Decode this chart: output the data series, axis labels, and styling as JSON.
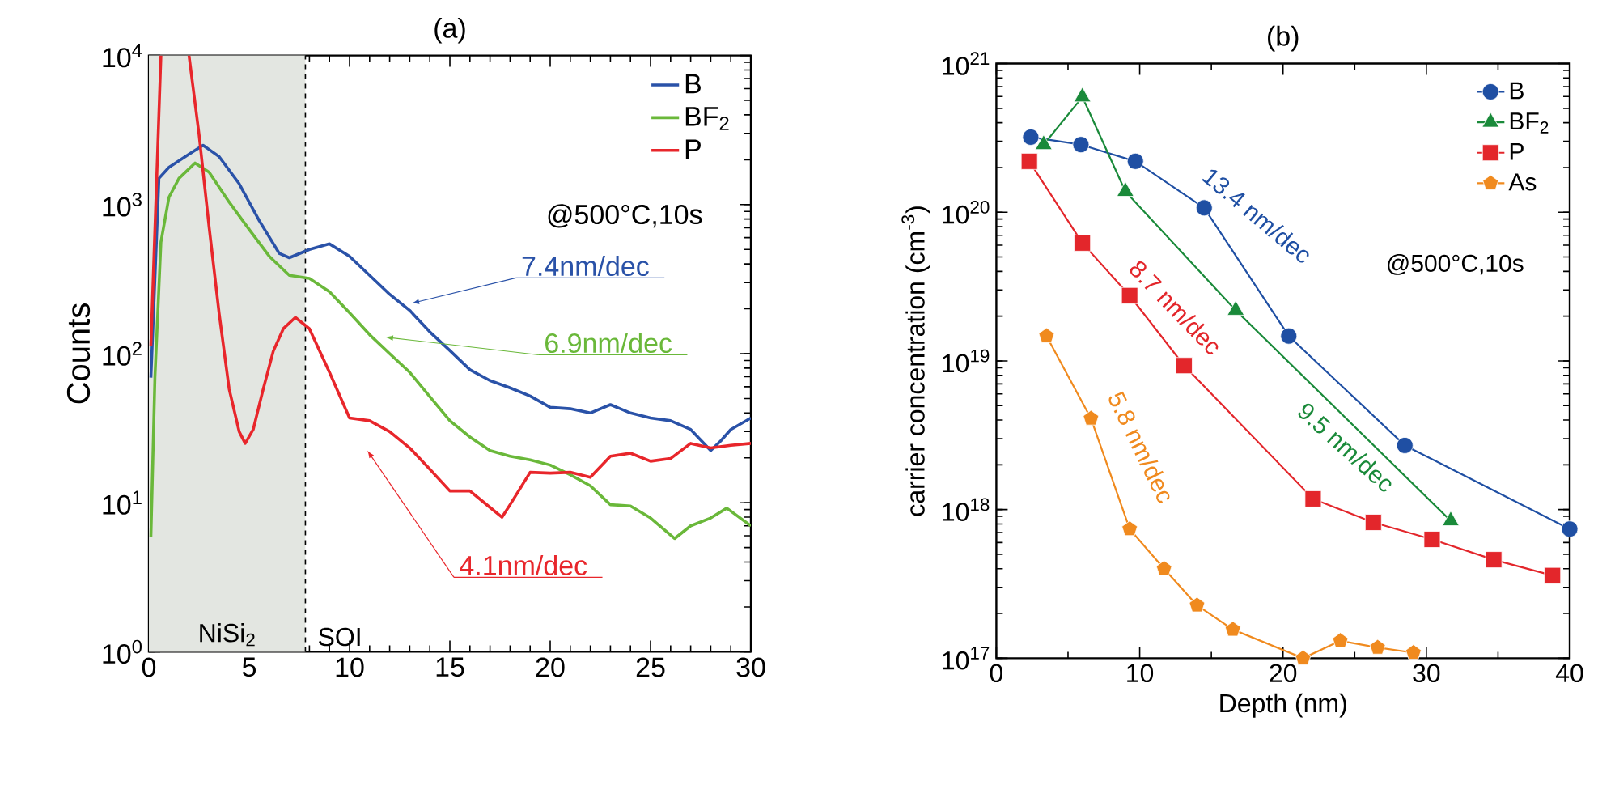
{
  "chart_data": [
    {
      "type": "line",
      "title": "(a)",
      "ylabel": "Counts",
      "log": true,
      "legend": "top right",
      "xlim": [
        0,
        30
      ],
      "xticks": [
        0,
        5,
        10,
        15,
        20,
        25,
        30
      ],
      "ylim": [
        1,
        10000
      ],
      "yticks": [
        {
          "value": 1,
          "label": "10$^{0}$"
        },
        {
          "value": 10,
          "label": "10$^{1}$"
        },
        {
          "value": 100,
          "label": "10$^{2}$"
        },
        {
          "value": 1000,
          "label": "10$^{3}$"
        },
        {
          "value": 10000,
          "label": "10$^{4}$"
        }
      ],
      "bands": [
        {
          "axis": "x",
          "from": 0,
          "to": 7.8,
          "label": "NiSi$_{2}$",
          "color": "#e3e6e1"
        }
      ],
      "ref_lines": [
        {
          "axis": "x",
          "value": 7.8,
          "label": "SOI",
          "line_style": "dashed",
          "color": "#000000"
        }
      ],
      "annotations": [
        {
          "text": "7.4nm/dec",
          "x": 13.1,
          "y": 218
        },
        {
          "text": "6.9nm/dec",
          "x": 11.8,
          "y": 129
        },
        "4.1nm/dec",
        "@500°C,10s"
      ],
      "series": [
        {
          "name": "B",
          "color": "#2a52a8",
          "x": [
            0.1,
            0.5,
            1,
            2,
            2.7,
            3.5,
            4.5,
            5.5,
            6.5,
            7,
            8,
            9,
            10,
            11,
            12,
            13,
            14,
            15,
            16,
            17,
            18,
            19,
            20,
            21,
            22,
            23,
            24,
            25,
            26,
            27,
            28,
            28.5,
            29,
            30
          ],
          "values": [
            69,
            1500,
            1780,
            2180,
            2500,
            2100,
            1380,
            780,
            470,
            440,
            500,
            545,
            450,
            335,
            250,
            195,
            140,
            105,
            78,
            66,
            59,
            52,
            43.6,
            42.7,
            40,
            45.5,
            40,
            37,
            35.5,
            31,
            22.4,
            26,
            31,
            37
          ]
        },
        {
          "name": "BF$_{2}$",
          "color": "#6ab83a",
          "x": [
            0.1,
            0.3,
            0.6,
            1,
            1.5,
            2.3,
            3,
            4,
            5,
            6,
            7,
            8,
            9,
            10,
            11,
            12,
            13,
            14,
            15,
            16,
            17,
            18,
            19,
            20,
            21,
            22,
            23,
            24,
            25,
            26.2,
            27,
            28,
            28.8,
            30
          ],
          "values": [
            5.9,
            69,
            560,
            1120,
            1500,
            1900,
            1650,
            1040,
            680,
            450,
            335,
            320,
            260,
            188,
            134,
            100,
            75,
            51.5,
            35.5,
            27.6,
            22.4,
            20.5,
            19.4,
            17.9,
            15.4,
            13,
            9.7,
            9.5,
            7.9,
            5.75,
            7,
            7.9,
            9.2,
            7
          ]
        },
        {
          "name": "P",
          "color": "#e8262b",
          "x": [
            0.1,
            0.6,
            1.3,
            2,
            2.5,
            3,
            3.5,
            4,
            4.5,
            4.8,
            5.2,
            5.7,
            6.2,
            6.7,
            7.3,
            8,
            9,
            10,
            11,
            12,
            13,
            14,
            15,
            16,
            17,
            17.6,
            18,
            19,
            20,
            21,
            22,
            23,
            24,
            25,
            26,
            27,
            28,
            29,
            30
          ],
          "values": [
            113,
            10000,
            null,
            10000,
            2950,
            710,
            187,
            58,
            30,
            25,
            31,
            58,
            104,
            147,
            175,
            147,
            75,
            37,
            35.5,
            30,
            23.3,
            16.8,
            12,
            12,
            9.3,
            8,
            9.7,
            16,
            15.8,
            16,
            14.8,
            20.5,
            21.5,
            19,
            19.8,
            25,
            23.3,
            24.3,
            25
          ]
        }
      ]
    },
    {
      "type": "line",
      "title": "(b)",
      "xlabel": "Depth (nm)",
      "ylabel": "carrier concentration (cm$^{-3}$)",
      "log": true,
      "legend": "top right",
      "xlim": [
        0,
        40
      ],
      "xticks": [
        0,
        10,
        20,
        30,
        40
      ],
      "ylim": [
        1e+17,
        1e+21
      ],
      "yticks": [
        {
          "value": 1e+17,
          "label": "10$^{17}$"
        },
        {
          "value": 1e+18,
          "label": "10$^{18}$"
        },
        {
          "value": 1e+19,
          "label": "10$^{19}$"
        },
        {
          "value": 1e+20,
          "label": "10$^{20}$"
        },
        {
          "value": 1e+21,
          "label": "10$^{21}$"
        }
      ],
      "annotations": [
        "13.4 nm/dec",
        "8.7 nm/dec",
        "9.5 nm/dec",
        "5.8 nm/dec",
        "@500°C,10s"
      ],
      "series": [
        {
          "name": "B",
          "color": "#1f4fa3",
          "marker": "circle",
          "x": [
            2.4,
            5.9,
            9.7,
            14.5,
            20.4,
            28.5,
            40
          ],
          "values": [
            3.2e+20,
            2.85e+20,
            2.2e+20,
            1.07e+20,
            1.47e+19,
            2.7e+18,
            7.4e+17
          ]
        },
        {
          "name": "BF$_{2}$",
          "color": "#1a8a3a",
          "marker": "triangle",
          "x": [
            3.3,
            6,
            9,
            16.7,
            31.7
          ],
          "values": [
            2.85e+20,
            5.96e+20,
            1.38e+20,
            2.19e+19,
            8.4e+17
          ]
        },
        {
          "name": "P",
          "color": "#e3262b",
          "marker": "square",
          "x": [
            2.3,
            6,
            9.3,
            13.1,
            22.1,
            26.3,
            30.4,
            34.7,
            38.8
          ],
          "values": [
            2.2e+20,
            6.2e+19,
            2.75e+19,
            9.3e+18,
            1.18e+18,
            8.2e+17,
            6.3e+17,
            4.6e+17,
            3.6e+17
          ]
        },
        {
          "name": "As",
          "color": "#f08a1e",
          "marker": "star",
          "x": [
            3.5,
            6.6,
            9.3,
            11.7,
            14,
            16.5,
            21.4,
            24,
            26.6,
            29.1
          ],
          "values": [
            1.47e+19,
            4.1e+18,
            7.4e+17,
            4e+17,
            2.27e+17,
            1.56e+17,
            1e+17,
            1.31e+17,
            1.18e+17,
            1.09e+17
          ]
        }
      ]
    }
  ]
}
